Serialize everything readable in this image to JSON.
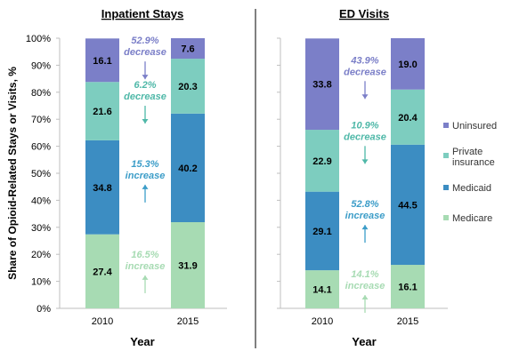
{
  "chart_data": {
    "type": "bar",
    "stacked": true,
    "ylabel": "Share of Opioid-Related Stays or Visits, %",
    "ylim": [
      0,
      100
    ],
    "yticks": [
      "0%",
      "10%",
      "20%",
      "30%",
      "40%",
      "50%",
      "60%",
      "70%",
      "80%",
      "90%",
      "100%"
    ],
    "legend": {
      "placement": "right",
      "entries": [
        {
          "name": "Uninsured",
          "color": "#7b7fc8"
        },
        {
          "name": "Private insurance",
          "color": "#7dcdbf"
        },
        {
          "name": "Medicaid",
          "color": "#3c8dc2"
        },
        {
          "name": "Medicare",
          "color": "#a7dbb3"
        }
      ]
    },
    "panels": [
      {
        "title": "Inpatient Stays",
        "xlabel": "Year",
        "categories": [
          "2010",
          "2015"
        ],
        "series": [
          {
            "name": "Medicare",
            "color": "#a7dbb3",
            "values": [
              27.4,
              31.9
            ]
          },
          {
            "name": "Medicaid",
            "color": "#3c8dc2",
            "values": [
              34.8,
              40.2
            ]
          },
          {
            "name": "Private insurance",
            "color": "#7dcdbf",
            "values": [
              21.6,
              20.3
            ]
          },
          {
            "name": "Uninsured",
            "color": "#7b7fc8",
            "values": [
              16.1,
              7.6
            ]
          }
        ],
        "annotations": [
          {
            "series": "Uninsured",
            "line1": "52.9%",
            "line2": "decrease",
            "direction": "down",
            "color": "#7b7fc8"
          },
          {
            "series": "Private insurance",
            "line1": "6.2%",
            "line2": "decrease",
            "direction": "down",
            "color": "#4fb8a8"
          },
          {
            "series": "Medicaid",
            "line1": "15.3%",
            "line2": "increase",
            "direction": "up",
            "color": "#3c9dc8"
          },
          {
            "series": "Medicare",
            "line1": "16.5%",
            "line2": "increase",
            "direction": "up",
            "color": "#a7dbb3"
          }
        ]
      },
      {
        "title": "ED Visits",
        "xlabel": "Year",
        "categories": [
          "2010",
          "2015"
        ],
        "series": [
          {
            "name": "Medicare",
            "color": "#a7dbb3",
            "values": [
              14.1,
              16.1
            ]
          },
          {
            "name": "Medicaid",
            "color": "#3c8dc2",
            "values": [
              29.1,
              44.5
            ]
          },
          {
            "name": "Private insurance",
            "color": "#7dcdbf",
            "values": [
              22.9,
              20.4
            ]
          },
          {
            "name": "Uninsured",
            "color": "#7b7fc8",
            "values": [
              33.8,
              19.0
            ]
          }
        ],
        "annotations": [
          {
            "series": "Uninsured",
            "line1": "43.9%",
            "line2": "decrease",
            "direction": "down",
            "color": "#7b7fc8"
          },
          {
            "series": "Private insurance",
            "line1": "10.9%",
            "line2": "decrease",
            "direction": "down",
            "color": "#4fb8a8"
          },
          {
            "series": "Medicaid",
            "line1": "52.8%",
            "line2": "increase",
            "direction": "up",
            "color": "#3c9dc8"
          },
          {
            "series": "Medicare",
            "line1": "14.1%",
            "line2": "increase",
            "direction": "up",
            "color": "#a7dbb3"
          }
        ]
      }
    ]
  }
}
